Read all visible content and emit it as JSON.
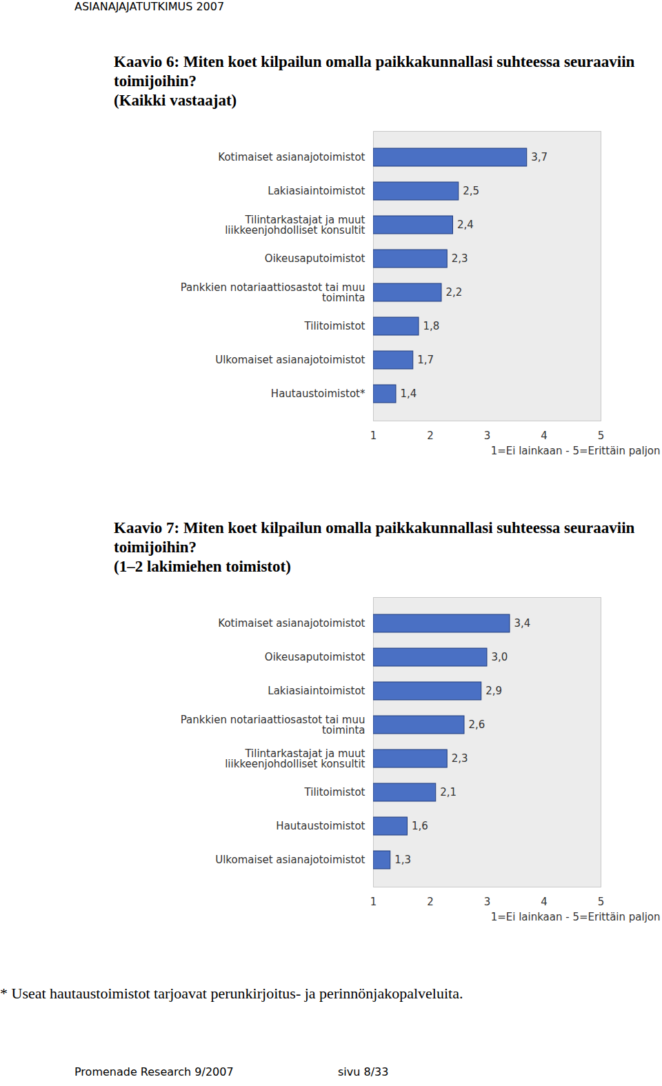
{
  "header": "ASIANAJAJATUTKIMUS 2007",
  "chart_data": [
    {
      "type": "bar",
      "orientation": "horizontal",
      "title": "Kaavio 6: Miten koet kilpailun omalla paikkakunnallasi suhteessa seuraaviin toimijoihin?",
      "subtitle": "(Kaikki vastaajat)",
      "categories": [
        "Kotimaiset asianajotoimistot",
        "Lakiasiaintoimistot",
        "Tilintarkastajat ja muut\nliikkeenjohdolliset konsultit",
        "Oikeusaputoimistot",
        "Pankkien notariaattiosastot tai muu\ntoiminta",
        "Tilitoimistot",
        "Ulkomaiset asianajotoimistot",
        "Hautaustoimistot*"
      ],
      "values": [
        3.7,
        2.5,
        2.4,
        2.3,
        2.2,
        1.8,
        1.7,
        1.4
      ],
      "value_labels": [
        "3,7",
        "2,5",
        "2,4",
        "2,3",
        "2,2",
        "1,8",
        "1,7",
        "1,4"
      ],
      "data_labels": true,
      "color": "#4a70c4",
      "xlim": [
        1,
        5
      ],
      "xticks": [
        1,
        2,
        3,
        4,
        5
      ],
      "x_label": "1=Ei lainkaan - 5=Erittäin paljon"
    },
    {
      "type": "bar",
      "orientation": "horizontal",
      "title": "Kaavio 7: Miten koet kilpailun omalla paikkakunnallasi suhteessa seuraaviin toimijoihin?",
      "subtitle": "(1–2 lakimiehen toimistot)",
      "categories": [
        "Kotimaiset asianajotoimistot",
        "Oikeusaputoimistot",
        "Lakiasiaintoimistot",
        "Pankkien notariaattiosastot tai muu\ntoiminta",
        "Tilintarkastajat ja muut\nliikkeenjohdolliset konsultit",
        "Tilitoimistot",
        "Hautaustoimistot",
        "Ulkomaiset asianajotoimistot"
      ],
      "values": [
        3.4,
        3.0,
        2.9,
        2.6,
        2.3,
        2.1,
        1.6,
        1.3
      ],
      "value_labels": [
        "3,4",
        "3,0",
        "2,9",
        "2,6",
        "2,3",
        "2,1",
        "1,6",
        "1,3"
      ],
      "data_labels": true,
      "color": "#4a70c4",
      "xlim": [
        1,
        5
      ],
      "xticks": [
        1,
        2,
        3,
        4,
        5
      ],
      "x_label": "1=Ei lainkaan - 5=Erittäin paljon"
    }
  ],
  "footnote": "* Useat hautaustoimistot tarjoavat perunkirjoitus- ja perinnönjakopalveluita.",
  "footer": [
    "Promenade Research 9/2007",
    "sivu 8/33"
  ]
}
